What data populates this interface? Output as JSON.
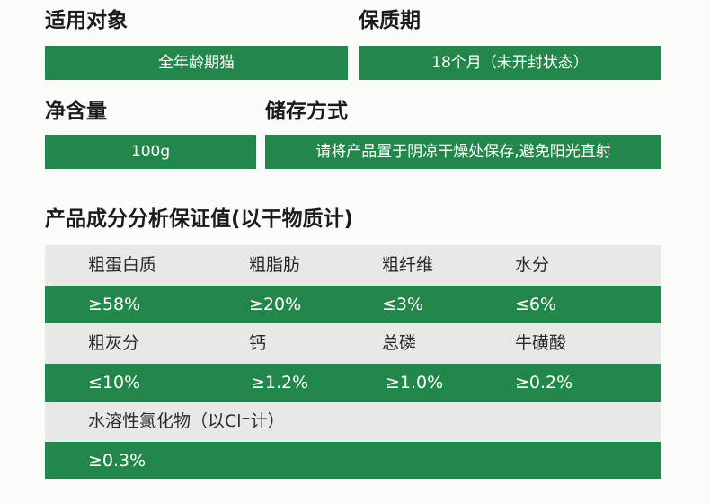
{
  "info": {
    "target": {
      "label": "适用对象",
      "value": "全年龄期猫"
    },
    "shelf_life": {
      "label": "保质期",
      "value": "18个月（未开封状态）"
    },
    "net_content": {
      "label": "净含量",
      "value": "100g"
    },
    "storage": {
      "label": "储存方式",
      "value": "请将产品置于阴凉干燥处保存,避免阳光直射"
    }
  },
  "analysis": {
    "title": "产品成分分析保证值(以干物质计)",
    "row1_headers": [
      "粗蛋白质",
      "粗脂肪",
      "粗纤维",
      "水分"
    ],
    "row1_values": [
      "≥58%",
      "≥20%",
      "≤3%",
      "≤6%"
    ],
    "row2_headers": [
      "粗灰分",
      "钙",
      "总磷",
      "牛磺酸"
    ],
    "row2_values": [
      "≤10%",
      "≥1.2%",
      "≥1.0%",
      "≥0.2%"
    ],
    "row3_header": "水溶性氯化物（以Cl⁻计）",
    "row3_value": "≥0.3%"
  },
  "colors": {
    "accent_green": "#23864a",
    "table_gray": "#e8e8e6"
  }
}
